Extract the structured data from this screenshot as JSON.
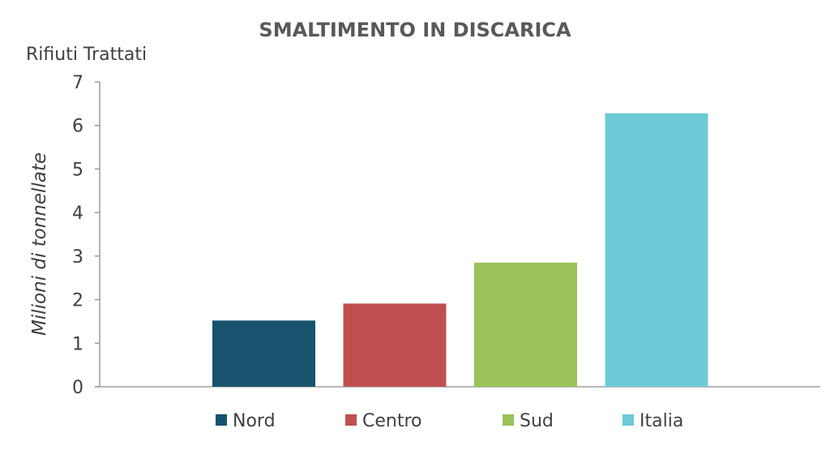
{
  "chart_data": {
    "type": "bar",
    "title": "SMALTIMENTO IN DISCARICA",
    "subtitle": "Rifiuti Trattati",
    "ylabel": "Milioni di tonnellate",
    "xlabel": "",
    "ylim": [
      0,
      7
    ],
    "yticks": [
      "0",
      "1",
      "2",
      "3",
      "4",
      "5",
      "6",
      "7"
    ],
    "categories": [
      "Nord",
      "Centro",
      "Sud",
      "Italia"
    ],
    "values": [
      1.52,
      1.91,
      2.85,
      6.28
    ],
    "colors": [
      "#17536e",
      "#c05050",
      "#9bc35a",
      "#6ccad6"
    ],
    "grid": false,
    "legend": "bottom"
  }
}
